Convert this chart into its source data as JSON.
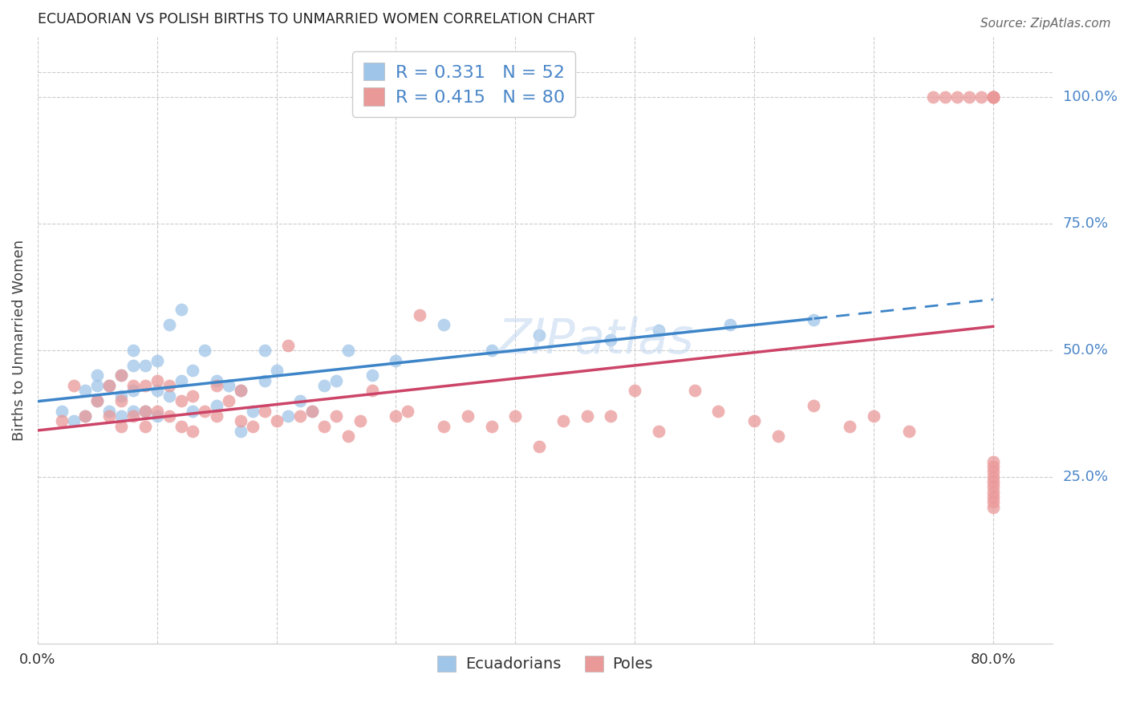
{
  "title": "ECUADORIAN VS POLISH BIRTHS TO UNMARRIED WOMEN CORRELATION CHART",
  "source": "Source: ZipAtlas.com",
  "ylabel": "Births to Unmarried Women",
  "xlim": [
    0.0,
    0.85
  ],
  "ylim": [
    -0.08,
    1.12
  ],
  "ytick_positions": [
    0.25,
    0.5,
    0.75,
    1.0
  ],
  "ytick_labels": [
    "25.0%",
    "50.0%",
    "75.0%",
    "100.0%"
  ],
  "blue_scatter_color": "#9fc5e8",
  "pink_scatter_color": "#ea9999",
  "blue_line_color": "#3d85c8",
  "pink_line_color": "#cc4468",
  "legend_r_blue": "R = 0.331",
  "legend_n_blue": "N = 52",
  "legend_r_pink": "R = 0.415",
  "legend_n_pink": "N = 80",
  "watermark": "ZIPatlas",
  "blue_scatter_x": [
    0.02,
    0.03,
    0.04,
    0.04,
    0.05,
    0.05,
    0.05,
    0.06,
    0.06,
    0.07,
    0.07,
    0.07,
    0.08,
    0.08,
    0.08,
    0.08,
    0.09,
    0.09,
    0.1,
    0.1,
    0.1,
    0.11,
    0.11,
    0.12,
    0.12,
    0.13,
    0.13,
    0.14,
    0.15,
    0.15,
    0.16,
    0.17,
    0.17,
    0.18,
    0.19,
    0.19,
    0.2,
    0.21,
    0.22,
    0.23,
    0.24,
    0.25,
    0.26,
    0.28,
    0.3,
    0.34,
    0.38,
    0.42,
    0.48,
    0.52,
    0.58,
    0.65
  ],
  "blue_scatter_y": [
    0.38,
    0.36,
    0.37,
    0.42,
    0.4,
    0.43,
    0.45,
    0.38,
    0.43,
    0.37,
    0.41,
    0.45,
    0.38,
    0.42,
    0.47,
    0.5,
    0.38,
    0.47,
    0.37,
    0.42,
    0.48,
    0.41,
    0.55,
    0.44,
    0.58,
    0.38,
    0.46,
    0.5,
    0.39,
    0.44,
    0.43,
    0.34,
    0.42,
    0.38,
    0.44,
    0.5,
    0.46,
    0.37,
    0.4,
    0.38,
    0.43,
    0.44,
    0.5,
    0.45,
    0.48,
    0.55,
    0.5,
    0.53,
    0.52,
    0.54,
    0.55,
    0.56
  ],
  "pink_scatter_x": [
    0.02,
    0.03,
    0.04,
    0.05,
    0.06,
    0.06,
    0.07,
    0.07,
    0.07,
    0.08,
    0.08,
    0.09,
    0.09,
    0.09,
    0.1,
    0.1,
    0.11,
    0.11,
    0.12,
    0.12,
    0.13,
    0.13,
    0.14,
    0.15,
    0.15,
    0.16,
    0.17,
    0.17,
    0.18,
    0.19,
    0.2,
    0.21,
    0.22,
    0.23,
    0.24,
    0.25,
    0.26,
    0.27,
    0.28,
    0.3,
    0.31,
    0.32,
    0.34,
    0.36,
    0.38,
    0.4,
    0.42,
    0.44,
    0.46,
    0.48,
    0.5,
    0.52,
    0.55,
    0.57,
    0.6,
    0.62,
    0.65,
    0.68,
    0.7,
    0.73,
    0.75,
    0.76,
    0.77,
    0.78,
    0.79,
    0.8,
    0.8,
    0.8,
    0.8,
    0.8,
    0.8,
    0.8,
    0.8,
    0.8,
    0.8,
    0.8,
    0.8,
    0.8,
    0.8,
    0.8
  ],
  "pink_scatter_y": [
    0.36,
    0.43,
    0.37,
    0.4,
    0.37,
    0.43,
    0.35,
    0.4,
    0.45,
    0.37,
    0.43,
    0.35,
    0.38,
    0.43,
    0.38,
    0.44,
    0.37,
    0.43,
    0.35,
    0.4,
    0.34,
    0.41,
    0.38,
    0.37,
    0.43,
    0.4,
    0.36,
    0.42,
    0.35,
    0.38,
    0.36,
    0.51,
    0.37,
    0.38,
    0.35,
    0.37,
    0.33,
    0.36,
    0.42,
    0.37,
    0.38,
    0.57,
    0.35,
    0.37,
    0.35,
    0.37,
    0.31,
    0.36,
    0.37,
    0.37,
    0.42,
    0.34,
    0.42,
    0.38,
    0.36,
    0.33,
    0.39,
    0.35,
    0.37,
    0.34,
    1.0,
    1.0,
    1.0,
    1.0,
    1.0,
    1.0,
    1.0,
    1.0,
    1.0,
    1.0,
    0.19,
    0.2,
    0.21,
    0.22,
    0.23,
    0.24,
    0.25,
    0.26,
    0.27,
    0.28
  ]
}
